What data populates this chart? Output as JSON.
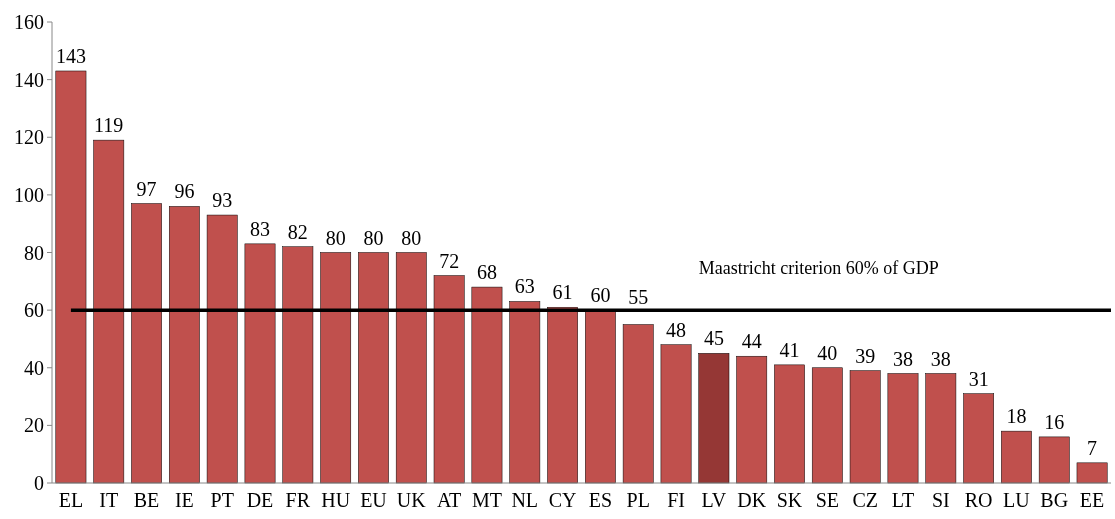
{
  "chart_data": {
    "type": "bar",
    "categories": [
      "EL",
      "IT",
      "BE",
      "IE",
      "PT",
      "DE",
      "FR",
      "HU",
      "EU",
      "UK",
      "AT",
      "MT",
      "NL",
      "CY",
      "ES",
      "PL",
      "FI",
      "LV",
      "DK",
      "SK",
      "SE",
      "CZ",
      "LT",
      "SI",
      "RO",
      "LU",
      "BG",
      "EE"
    ],
    "values": [
      143,
      119,
      97,
      96,
      93,
      83,
      82,
      80,
      80,
      80,
      72,
      68,
      63,
      61,
      60,
      55,
      48,
      45,
      44,
      41,
      40,
      39,
      38,
      38,
      31,
      18,
      16,
      7
    ],
    "colors": [
      "#c0504d",
      "#c0504d",
      "#c0504d",
      "#c0504d",
      "#c0504d",
      "#c0504d",
      "#c0504d",
      "#c0504d",
      "#c0504d",
      "#c0504d",
      "#c0504d",
      "#c0504d",
      "#c0504d",
      "#c0504d",
      "#c0504d",
      "#c0504d",
      "#c0504d",
      "#953735",
      "#c0504d",
      "#c0504d",
      "#c0504d",
      "#c0504d",
      "#c0504d",
      "#c0504d",
      "#c0504d",
      "#c0504d",
      "#c0504d",
      "#c0504d"
    ],
    "ylim": [
      0,
      160
    ],
    "yticks": [
      0,
      20,
      40,
      60,
      80,
      100,
      120,
      140,
      160
    ],
    "data_labels": true,
    "grid": false,
    "ref_lines": [
      {
        "axis": "y",
        "value": 60,
        "label": "Maastricht criterion 60% of GDP",
        "color": "#000000"
      }
    ]
  }
}
